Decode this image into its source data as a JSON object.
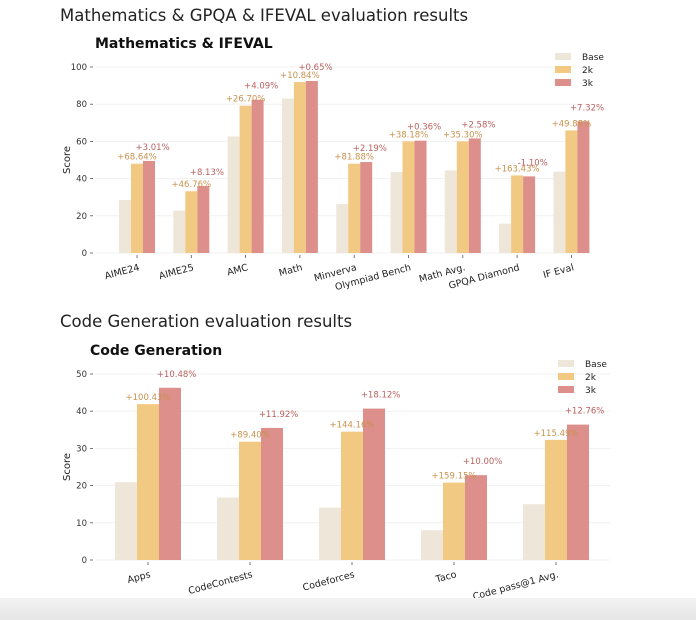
{
  "headings": {
    "math": "Mathematics & GPQA & IFEVAL evaluation results",
    "code": "Code Generation evaluation results"
  },
  "colors": {
    "Base": "#efe6da",
    "2k": "#f2c983",
    "3k": "#dd8f8c",
    "label_2k": "#c8924e",
    "label_3k": "#b9615f"
  },
  "chart_data": [
    {
      "type": "bar",
      "title": "Mathematics & IFEVAL",
      "ylabel": "Score",
      "ylim": [
        0,
        100
      ],
      "yticks": [
        0,
        20,
        40,
        60,
        80,
        100
      ],
      "grid": true,
      "legend": "top-right",
      "categories": [
        "AIME24",
        "AIME25",
        "AMC",
        "Math",
        "Minverva",
        "Olympiad Bench",
        "Math Avg.",
        "GPQA Diamond",
        "IF Eval"
      ],
      "series": [
        {
          "name": "Base",
          "values": [
            28.5,
            22.8,
            62.7,
            83.0,
            26.3,
            43.5,
            44.4,
            15.8,
            43.7
          ]
        },
        {
          "name": "2k",
          "values": [
            48.0,
            33.2,
            79.2,
            91.9,
            48.0,
            60.0,
            60.0,
            41.7,
            65.9
          ]
        },
        {
          "name": "3k",
          "values": [
            49.5,
            36.0,
            82.4,
            92.5,
            48.9,
            60.4,
            61.6,
            41.2,
            70.8
          ]
        }
      ],
      "annotations_2k": [
        "+68.64%",
        "+46.76%",
        "+26.70%",
        "+10.84%",
        "+81.88%",
        "+38.18%",
        "+35.30%",
        "+163.43%",
        "+49.88%"
      ],
      "annotations_3k": [
        "+3.01%",
        "+8.13%",
        "+4.09%",
        "+0.65%",
        "+2.19%",
        "+0.36%",
        "+2.58%",
        "-1.10%",
        "+7.32%"
      ]
    },
    {
      "type": "bar",
      "title": "Code Generation",
      "ylabel": "Score",
      "ylim": [
        0,
        50
      ],
      "yticks": [
        0,
        10,
        20,
        30,
        40,
        50
      ],
      "grid": true,
      "legend": "top-right",
      "categories": [
        "Apps",
        "CodeContests",
        "Codeforces",
        "Taco",
        "Code pass@1 Avg."
      ],
      "series": [
        {
          "name": "Base",
          "values": [
            20.9,
            16.8,
            14.1,
            8.0,
            15.0
          ]
        },
        {
          "name": "2k",
          "values": [
            41.9,
            31.8,
            34.5,
            20.8,
            32.3
          ]
        },
        {
          "name": "3k",
          "values": [
            46.3,
            35.5,
            40.7,
            22.8,
            36.4
          ]
        }
      ],
      "annotations_2k": [
        "+100.43%",
        "+89.40%",
        "+144.16%",
        "+159.15%",
        "+115.49%"
      ],
      "annotations_3k": [
        "+10.48%",
        "+11.92%",
        "+18.12%",
        "+10.00%",
        "+12.76%"
      ]
    }
  ]
}
